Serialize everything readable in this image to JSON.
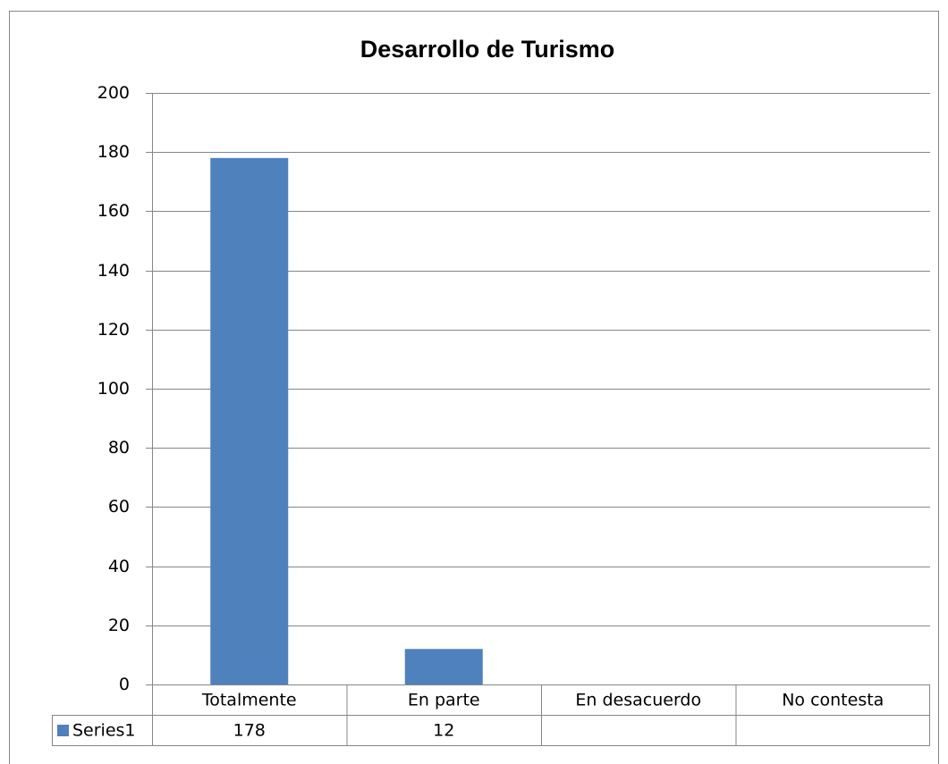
{
  "chart_data": {
    "type": "bar",
    "title": "Desarrollo de Turismo",
    "categories": [
      "Totalmente",
      "En parte",
      "En desacuerdo",
      "No contesta"
    ],
    "series": [
      {
        "name": "Series1",
        "color": "#4f81bd",
        "values": [
          178,
          12,
          null,
          null
        ]
      }
    ],
    "ylim": [
      0,
      200
    ],
    "yticks": [
      0,
      20,
      40,
      60,
      80,
      100,
      120,
      140,
      160,
      180,
      200
    ],
    "grid": true,
    "data_table": true
  }
}
